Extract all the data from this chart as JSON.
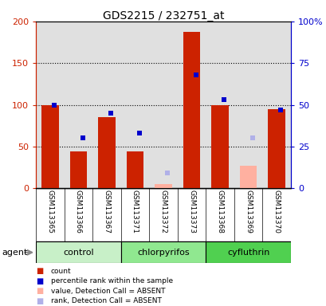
{
  "title": "GDS2215 / 232751_at",
  "samples": [
    "GSM113365",
    "GSM113366",
    "GSM113367",
    "GSM113371",
    "GSM113372",
    "GSM113373",
    "GSM113368",
    "GSM113369",
    "GSM113370"
  ],
  "groups": [
    {
      "name": "control",
      "indices": [
        0,
        1,
        2
      ],
      "color": "#c8f0c8"
    },
    {
      "name": "chlorpyrifos",
      "indices": [
        3,
        4,
        5
      ],
      "color": "#90e890"
    },
    {
      "name": "cyfluthrin",
      "indices": [
        6,
        7,
        8
      ],
      "color": "#50d050"
    }
  ],
  "count_values": [
    100,
    44,
    85,
    44,
    null,
    187,
    100,
    null,
    95
  ],
  "count_absent": [
    null,
    null,
    null,
    null,
    5,
    null,
    null,
    27,
    null
  ],
  "rank_values_pct": [
    50,
    30,
    45,
    33,
    null,
    68,
    53,
    null,
    47
  ],
  "rank_absent_pct": [
    null,
    null,
    null,
    null,
    9,
    null,
    null,
    30,
    null
  ],
  "ylim_left": [
    0,
    200
  ],
  "ylim_right": [
    0,
    100
  ],
  "yticks_left": [
    0,
    50,
    100,
    150,
    200
  ],
  "yticks_right": [
    0,
    25,
    50,
    75,
    100
  ],
  "ytick_labels_right": [
    "0",
    "25",
    "50",
    "75",
    "100%"
  ],
  "count_color": "#cc2200",
  "count_absent_color": "#ffb0a0",
  "rank_color": "#0000cc",
  "rank_absent_color": "#b0b0e8",
  "marker_size": 5,
  "bg_color_plot": "#e0e0e0",
  "agent_label": "agent",
  "legend_items": [
    {
      "color": "#cc2200",
      "label": "count"
    },
    {
      "color": "#0000cc",
      "label": "percentile rank within the sample"
    },
    {
      "color": "#ffb0a0",
      "label": "value, Detection Call = ABSENT"
    },
    {
      "color": "#b0b0e8",
      "label": "rank, Detection Call = ABSENT"
    }
  ]
}
